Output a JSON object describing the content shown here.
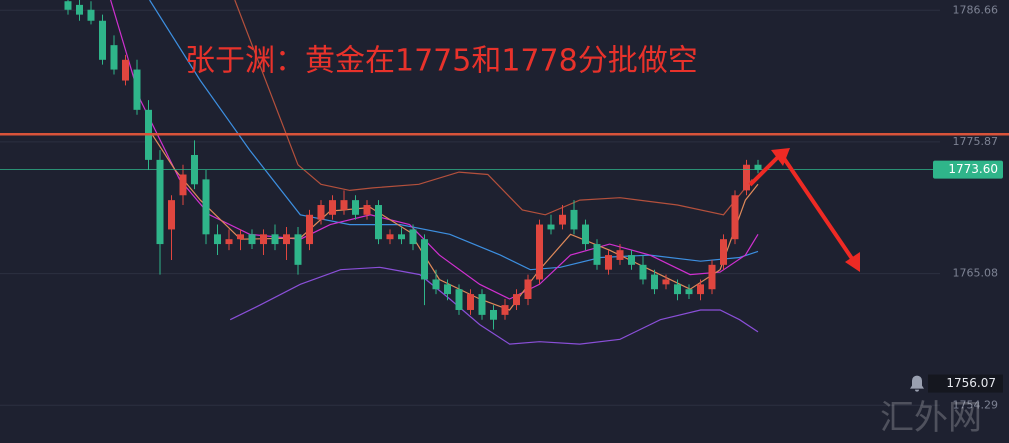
{
  "chart_data": {
    "type": "candlestick",
    "annotation": "张于渊：黄金在1775和1778分批做空",
    "watermark": "汇外网",
    "up_color": "#e0463f",
    "down_color": "#2fb58a",
    "ylim": [
      1751.2,
      1787.5
    ],
    "yticks": [
      1786.66,
      1775.87,
      1765.08,
      1754.29
    ],
    "grid": true,
    "open": [
      1787.4,
      1787.1,
      1786.7,
      1785.8,
      1783.8,
      1780.9,
      1781.8,
      1778.5,
      1774.4,
      1768.7,
      1771.5,
      1774.8,
      1772.8,
      1768.3,
      1767.5,
      1767.9,
      1768.3,
      1767.5,
      1768.3,
      1767.5,
      1768.3,
      1767.5,
      1769.5,
      1769.9,
      1770.3,
      1771.1,
      1769.9,
      1770.7,
      1767.9,
      1768.3,
      1768.7,
      1767.9,
      1764.6,
      1764.2,
      1763.8,
      1762.1,
      1763.4,
      1762.1,
      1761.7,
      1762.5,
      1763.0,
      1764.6,
      1769.1,
      1769.1,
      1770.3,
      1769.1,
      1767.5,
      1765.4,
      1766.2,
      1766.6,
      1765.8,
      1765.0,
      1764.2,
      1764.2,
      1763.8,
      1763.4,
      1763.8,
      1765.8,
      1767.9,
      1771.9,
      1774.0
    ],
    "high": [
      1787.5,
      1787.5,
      1787.4,
      1786.3,
      1784.6,
      1783.0,
      1782.6,
      1779.3,
      1775.2,
      1771.5,
      1774.0,
      1776.0,
      1773.6,
      1769.1,
      1768.7,
      1768.7,
      1768.7,
      1768.7,
      1769.1,
      1768.9,
      1768.9,
      1770.3,
      1771.1,
      1771.5,
      1771.9,
      1771.5,
      1771.1,
      1771.1,
      1768.7,
      1768.9,
      1769.1,
      1768.3,
      1765.4,
      1764.6,
      1764.2,
      1763.8,
      1763.8,
      1762.5,
      1763.0,
      1763.8,
      1765.0,
      1769.5,
      1769.9,
      1770.7,
      1771.1,
      1769.5,
      1767.9,
      1767.0,
      1767.5,
      1767.0,
      1766.6,
      1765.4,
      1765.0,
      1764.6,
      1764.2,
      1764.6,
      1766.2,
      1768.3,
      1771.9,
      1774.4,
      1774.4
    ],
    "low": [
      1786.3,
      1785.8,
      1785.5,
      1782.2,
      1781.4,
      1780.5,
      1778.1,
      1773.6,
      1765.0,
      1766.2,
      1770.7,
      1772.0,
      1767.5,
      1766.6,
      1767.0,
      1767.0,
      1767.1,
      1766.6,
      1767.0,
      1766.2,
      1765.0,
      1767.0,
      1769.1,
      1769.5,
      1769.9,
      1769.5,
      1769.5,
      1767.5,
      1767.5,
      1767.5,
      1767.0,
      1762.5,
      1763.4,
      1762.9,
      1761.7,
      1761.7,
      1761.3,
      1760.5,
      1761.3,
      1762.1,
      1762.5,
      1764.2,
      1768.3,
      1768.7,
      1768.3,
      1767.0,
      1765.4,
      1765.0,
      1765.8,
      1765.4,
      1764.2,
      1763.4,
      1763.8,
      1762.9,
      1763.0,
      1762.9,
      1763.4,
      1765.4,
      1767.5,
      1771.5,
      1773.3
    ],
    "close": [
      1786.7,
      1786.3,
      1785.8,
      1782.6,
      1781.8,
      1782.6,
      1778.5,
      1774.4,
      1767.5,
      1771.1,
      1773.2,
      1772.4,
      1768.3,
      1767.5,
      1767.9,
      1768.3,
      1767.5,
      1768.3,
      1767.5,
      1768.3,
      1765.8,
      1769.9,
      1770.7,
      1771.1,
      1771.1,
      1769.9,
      1770.7,
      1767.9,
      1768.3,
      1767.9,
      1767.5,
      1764.6,
      1763.8,
      1763.4,
      1762.1,
      1763.4,
      1761.7,
      1761.3,
      1762.5,
      1763.4,
      1764.6,
      1769.1,
      1768.7,
      1769.9,
      1768.7,
      1767.5,
      1765.8,
      1766.6,
      1767.0,
      1765.8,
      1764.6,
      1763.8,
      1764.6,
      1763.4,
      1763.4,
      1764.2,
      1765.8,
      1767.9,
      1771.5,
      1774.0,
      1773.6
    ],
    "lines": [
      {
        "color": "#b4503c",
        "x": [
          14.5,
          20,
          22,
          24.5,
          26.5,
          30.5,
          34,
          36.5,
          39.5,
          41.5,
          44.5,
          48,
          53,
          57,
          59.5
        ],
        "values": [
          1787.5,
          1774.0,
          1772.4,
          1771.9,
          1772.1,
          1772.4,
          1773.4,
          1773.2,
          1770.3,
          1769.9,
          1771.1,
          1771.3,
          1770.7,
          1769.9,
          1772.8
        ]
      },
      {
        "color": "#8a4fd8",
        "x": [
          14.1,
          16.7,
          20.2,
          23.7,
          27.1,
          30.6,
          33.2,
          35.8,
          38.4,
          41,
          44.5,
          48,
          51.5,
          55,
          56.7,
          58.4,
          60
        ],
        "values": [
          1761.3,
          1762.5,
          1764.2,
          1765.4,
          1765.6,
          1765.0,
          1763.0,
          1760.9,
          1759.3,
          1759.5,
          1759.3,
          1759.7,
          1761.3,
          1762.1,
          1762.1,
          1761.3,
          1760.3
        ]
      },
      {
        "color": "#3d8fe0",
        "x": [
          7.1,
          11.5,
          15.8,
          20.2,
          24.5,
          28.9,
          33.2,
          37.6,
          40.2,
          42.8,
          46.3,
          50.6,
          55,
          58.4,
          60
        ],
        "values": [
          1787.5,
          1780.9,
          1775.2,
          1769.9,
          1769.1,
          1769.1,
          1768.3,
          1766.6,
          1765.4,
          1765.6,
          1766.4,
          1766.6,
          1766.1,
          1766.4,
          1766.9
        ]
      },
      {
        "color": "#d030d0",
        "x": [
          3.7,
          6.3,
          9.7,
          12.3,
          15.8,
          20.2,
          22.8,
          26.3,
          29.7,
          32.3,
          35.8,
          38.4,
          41,
          43.7,
          47.1,
          50.6,
          54.1,
          56.7,
          58.9,
          60
        ],
        "values": [
          1787.5,
          1779.3,
          1772.8,
          1769.9,
          1768.3,
          1767.9,
          1769.1,
          1769.9,
          1769.1,
          1766.6,
          1764.2,
          1763.0,
          1764.2,
          1766.6,
          1767.5,
          1766.6,
          1765.0,
          1765.2,
          1766.6,
          1768.3
        ]
      },
      {
        "color": "#e08a5a",
        "x": [
          7.1,
          9.3,
          11.5,
          15,
          20.2,
          22.8,
          26.3,
          29.7,
          32.3,
          35.8,
          38.4,
          41,
          43.7,
          47.1,
          50.6,
          54.1,
          56.7,
          58.9,
          60
        ],
        "values": [
          1776.8,
          1773.6,
          1771.1,
          1767.9,
          1768.0,
          1770.2,
          1770.5,
          1768.5,
          1764.6,
          1763.0,
          1762.1,
          1765.4,
          1768.3,
          1767.0,
          1765.4,
          1763.8,
          1765.4,
          1771.1,
          1772.4
        ]
      }
    ],
    "resistance": {
      "value": 1776.5,
      "color": "#d9533a"
    },
    "last_price": {
      "value": 1773.6,
      "label": "1773.60",
      "color": "#2fb58a"
    },
    "alert": {
      "value": 1756.07
    }
  }
}
